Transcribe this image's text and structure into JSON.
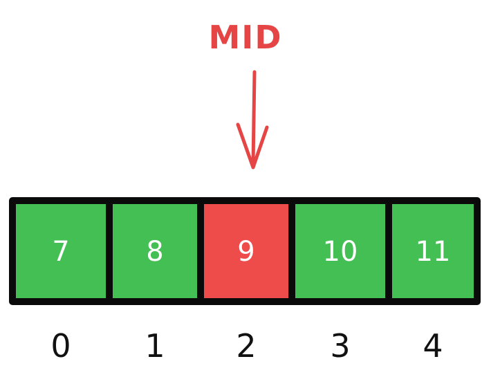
{
  "pointer": {
    "label": "MID",
    "color": "#e64545"
  },
  "array": {
    "highlight_color": "#ee4b4b",
    "default_color": "#44bf54",
    "border_color": "#0a0a0a",
    "cells": [
      {
        "value": "7",
        "index": "0",
        "highlighted": false
      },
      {
        "value": "8",
        "index": "1",
        "highlighted": false
      },
      {
        "value": "9",
        "index": "2",
        "highlighted": true
      },
      {
        "value": "10",
        "index": "3",
        "highlighted": false
      },
      {
        "value": "11",
        "index": "4",
        "highlighted": false
      }
    ]
  }
}
